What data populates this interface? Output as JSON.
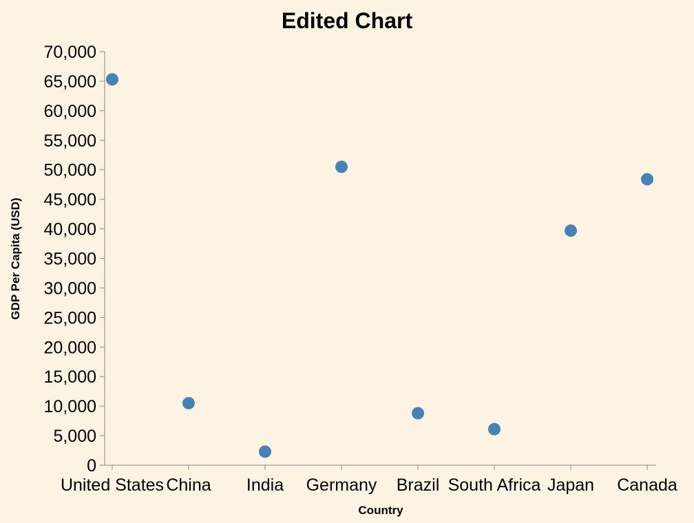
{
  "chart_data": {
    "type": "scatter",
    "title": "Edited Chart",
    "xlabel": "Country",
    "ylabel": "GDP Per Capita (USD)",
    "categories": [
      "United States",
      "China",
      "India",
      "Germany",
      "Brazil",
      "South Africa",
      "Japan",
      "Canada"
    ],
    "series": [
      {
        "values": [
          65300,
          10500,
          2300,
          50500,
          8800,
          6100,
          39700,
          48400
        ],
        "color": "#4682b4"
      }
    ],
    "ylim": [
      0,
      70000
    ],
    "yticks": [
      0,
      5000,
      10000,
      15000,
      20000,
      25000,
      30000,
      35000,
      40000,
      45000,
      50000,
      55000,
      60000,
      65000,
      70000
    ],
    "grid": false,
    "legend": "none"
  },
  "colors": {
    "background": "#fdf3e3",
    "point": "#4682b4",
    "axis": "#888888"
  }
}
